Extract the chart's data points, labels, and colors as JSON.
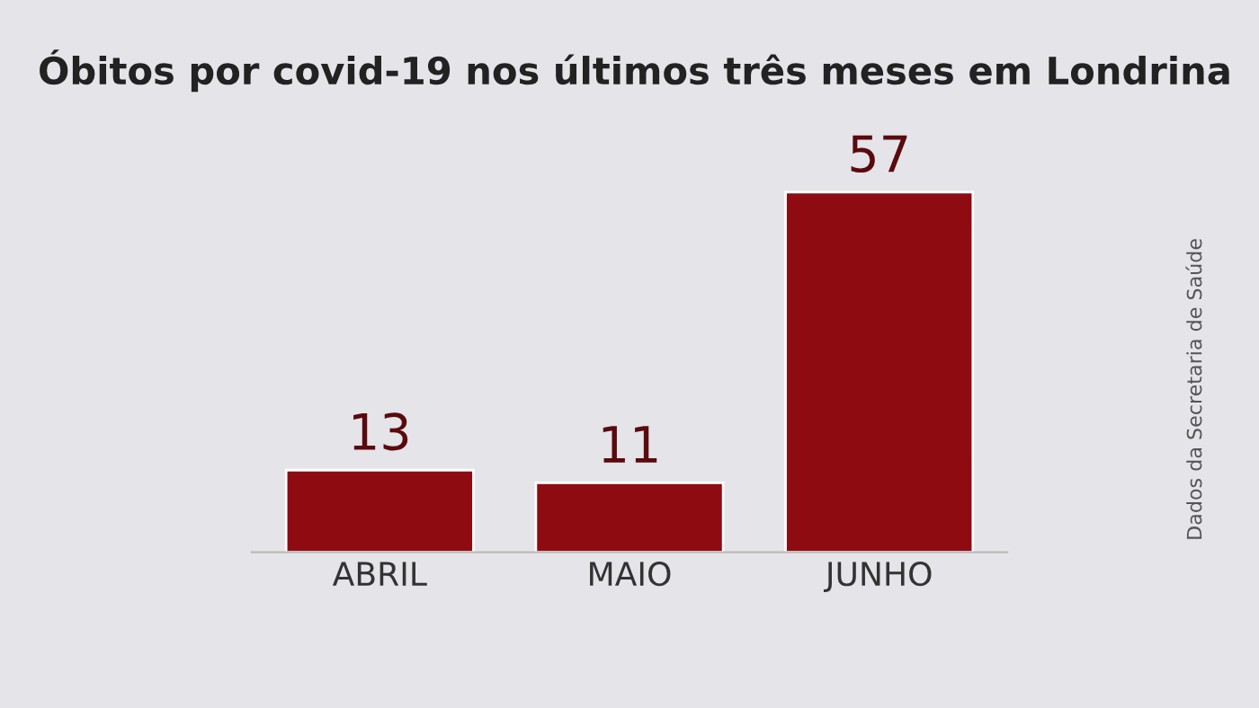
{
  "chart_data": {
    "type": "bar",
    "title": "Óbitos por covid-19 nos últimos três meses em Londrina",
    "categories": [
      "ABRIL",
      "MAIO",
      "JUNHO"
    ],
    "values": [
      13,
      11,
      57
    ],
    "color": "#8e0b12",
    "data_labels": true,
    "grid": false,
    "annotations": [
      "Dados da Secretaria de Saúde"
    ]
  }
}
